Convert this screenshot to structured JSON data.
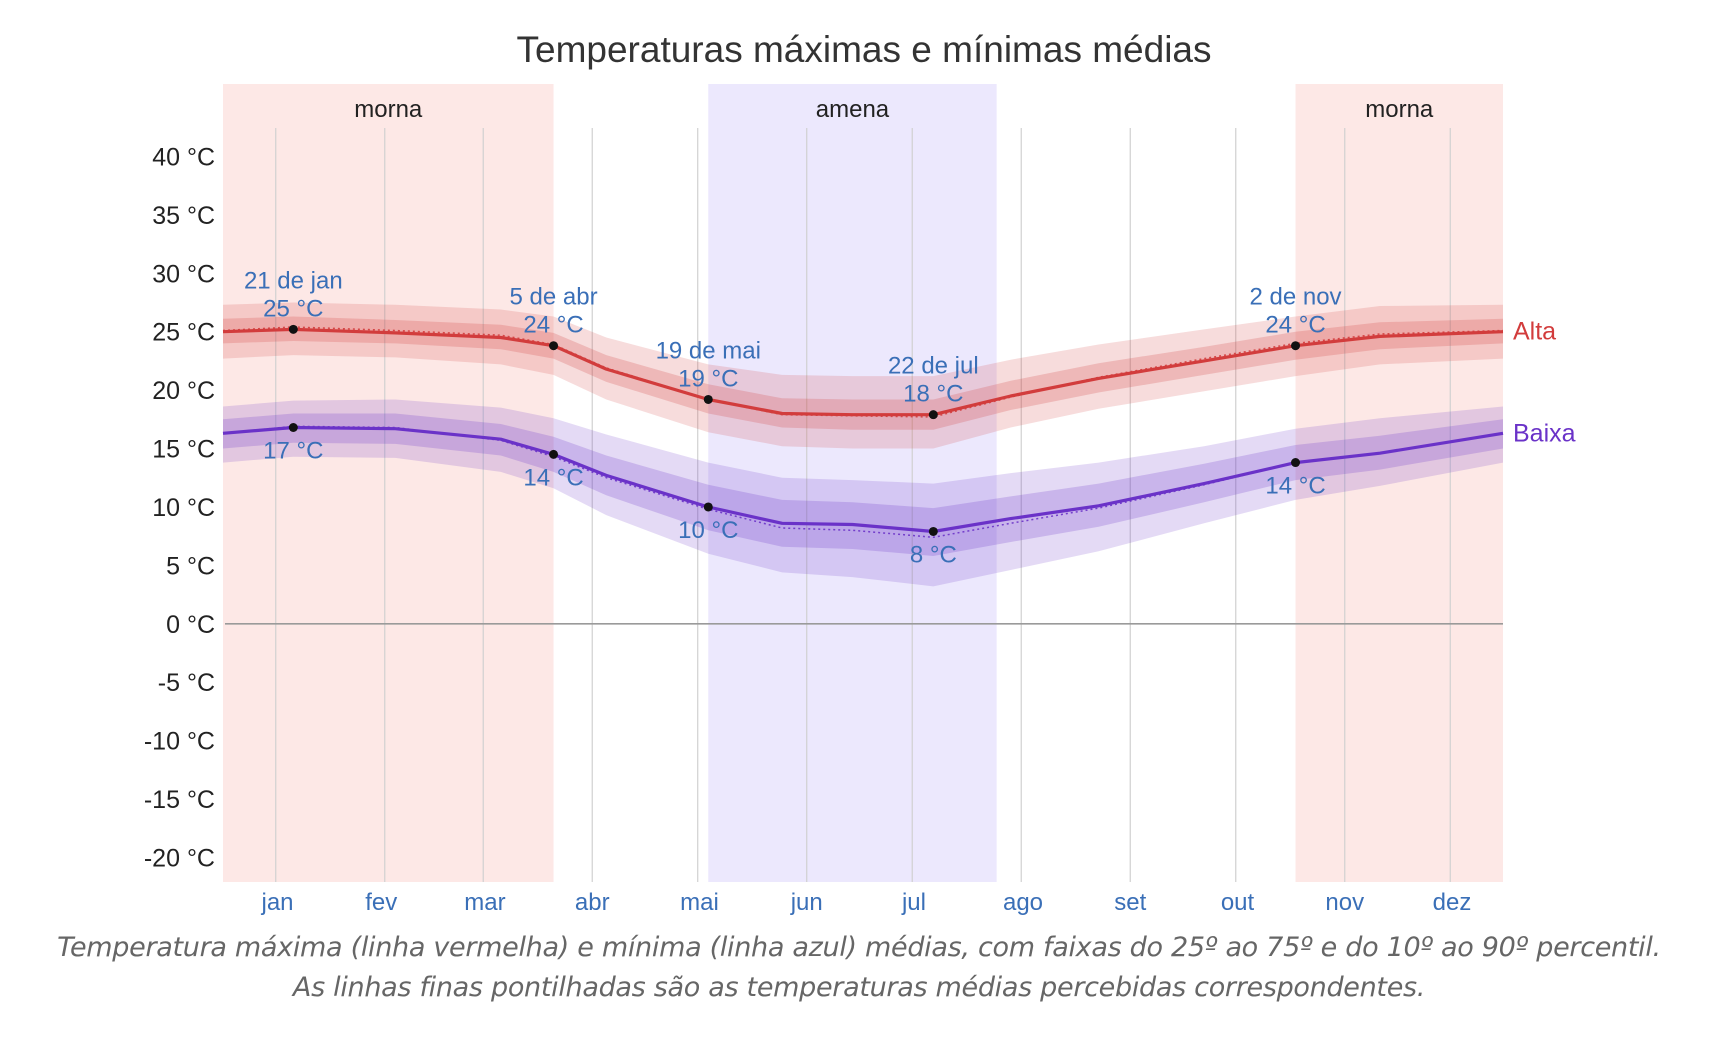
{
  "chart_data": {
    "type": "line",
    "title": "Temperaturas máximas e mínimas médias",
    "ylim": [
      -22,
      42
    ],
    "y_ticks": [
      40,
      35,
      30,
      25,
      20,
      15,
      10,
      5,
      0,
      -5,
      -10,
      -15,
      -20
    ],
    "y_tick_labels": [
      "40 °C",
      "35 °C",
      "30 °C",
      "25 °C",
      "20 °C",
      "15 °C",
      "10 °C",
      "5 °C",
      "0 °C",
      "-5 °C",
      "-10 °C",
      "-15 °C",
      "-20 °C"
    ],
    "months": [
      "jan",
      "fev",
      "mar",
      "abr",
      "mai",
      "jun",
      "jul",
      "ago",
      "set",
      "out",
      "nov",
      "dez"
    ],
    "x_unit": "day of year (1-365)",
    "grid": true,
    "seasons": [
      {
        "label": "morna",
        "start_day": 1,
        "end_day": 95,
        "color": "#fde8e6"
      },
      {
        "label": "amena",
        "start_day": 139,
        "end_day": 221,
        "color": "#ece8fd"
      },
      {
        "label": "morna",
        "start_day": 306,
        "end_day": 365,
        "color": "#fde8e6"
      }
    ],
    "series": [
      {
        "name": "Alta",
        "color": "#d23c3c",
        "x": [
          1,
          21,
          50,
          80,
          95,
          110,
          139,
          160,
          180,
          203,
          225,
          250,
          280,
          306,
          330,
          365
        ],
        "mean": [
          25.0,
          25.2,
          24.9,
          24.5,
          23.8,
          21.8,
          19.2,
          18.0,
          17.9,
          17.9,
          19.5,
          21.0,
          22.5,
          23.8,
          24.6,
          25.0
        ],
        "feels_like": [
          25.1,
          25.4,
          25.1,
          24.7,
          23.9,
          21.9,
          19.2,
          17.9,
          17.8,
          17.7,
          19.4,
          21.1,
          22.7,
          24.0,
          24.8,
          25.1
        ],
        "p25": [
          24.0,
          24.2,
          24.0,
          23.5,
          22.7,
          20.7,
          18.0,
          16.8,
          16.6,
          16.6,
          18.3,
          19.8,
          21.3,
          22.6,
          23.5,
          24.0
        ],
        "p75": [
          26.1,
          26.3,
          26.0,
          25.6,
          24.9,
          23.0,
          20.5,
          19.3,
          19.2,
          19.2,
          20.8,
          22.3,
          23.7,
          25.0,
          25.8,
          26.1
        ],
        "p10": [
          22.7,
          23.0,
          22.8,
          22.2,
          21.3,
          19.2,
          16.4,
          15.2,
          15.0,
          15.0,
          16.8,
          18.4,
          19.9,
          21.2,
          22.2,
          22.7
        ],
        "p90": [
          27.3,
          27.5,
          27.3,
          26.9,
          26.3,
          24.5,
          22.2,
          21.3,
          21.2,
          21.2,
          22.6,
          23.9,
          25.2,
          26.3,
          27.2,
          27.3
        ],
        "label": "Alta"
      },
      {
        "name": "Baixa",
        "color": "#6a32c8",
        "x": [
          1,
          21,
          50,
          80,
          95,
          110,
          139,
          160,
          180,
          203,
          225,
          250,
          280,
          306,
          330,
          365
        ],
        "mean": [
          16.3,
          16.8,
          16.7,
          15.8,
          14.5,
          12.7,
          10.0,
          8.6,
          8.5,
          7.9,
          9.0,
          10.1,
          12.0,
          13.8,
          14.6,
          16.3
        ],
        "feels_like": [
          16.3,
          16.9,
          16.8,
          15.7,
          14.3,
          12.5,
          9.8,
          8.2,
          8.0,
          7.4,
          8.6,
          9.9,
          11.9,
          13.8,
          14.6,
          16.3
        ],
        "p25": [
          15.0,
          15.5,
          15.4,
          14.4,
          13.0,
          11.0,
          8.0,
          6.6,
          6.4,
          5.8,
          7.0,
          8.3,
          10.4,
          12.3,
          13.2,
          15.0
        ],
        "p75": [
          17.5,
          18.0,
          18.0,
          17.1,
          16.0,
          14.4,
          11.9,
          10.6,
          10.4,
          9.9,
          10.9,
          12.0,
          13.7,
          15.3,
          16.1,
          17.5
        ],
        "p10": [
          13.8,
          14.3,
          14.2,
          13.0,
          11.6,
          9.3,
          6.0,
          4.4,
          4.0,
          3.2,
          4.6,
          6.2,
          8.6,
          10.6,
          11.8,
          13.8
        ],
        "p90": [
          18.6,
          19.1,
          19.2,
          18.5,
          17.6,
          16.2,
          13.8,
          12.5,
          12.3,
          12.0,
          12.9,
          13.8,
          15.2,
          16.7,
          17.6,
          18.6
        ],
        "label": "Baixa"
      }
    ],
    "annotations": [
      {
        "series": "Alta",
        "day": 21,
        "value": 25.2,
        "date_text": "21 de jan",
        "value_text": "25 °C",
        "position": "above"
      },
      {
        "series": "Alta",
        "day": 95,
        "value": 23.8,
        "date_text": "5 de abr",
        "value_text": "24 °C",
        "position": "above"
      },
      {
        "series": "Alta",
        "day": 139,
        "value": 19.2,
        "date_text": "19 de mai",
        "value_text": "19 °C",
        "position": "above"
      },
      {
        "series": "Alta",
        "day": 203,
        "value": 17.9,
        "date_text": "22 de jul",
        "value_text": "18 °C",
        "position": "above"
      },
      {
        "series": "Alta",
        "day": 306,
        "value": 23.8,
        "date_text": "2 de nov",
        "value_text": "24 °C",
        "position": "above"
      },
      {
        "series": "Baixa",
        "day": 21,
        "value": 16.8,
        "date_text": "",
        "value_text": "17 °C",
        "position": "below"
      },
      {
        "series": "Baixa",
        "day": 95,
        "value": 14.5,
        "date_text": "",
        "value_text": "14 °C",
        "position": "below"
      },
      {
        "series": "Baixa",
        "day": 139,
        "value": 10.0,
        "date_text": "",
        "value_text": "10 °C",
        "position": "below"
      },
      {
        "series": "Baixa",
        "day": 203,
        "value": 7.9,
        "date_text": "",
        "value_text": "8 °C",
        "position": "below"
      },
      {
        "series": "Baixa",
        "day": 306,
        "value": 13.8,
        "date_text": "",
        "value_text": "14 °C",
        "position": "below"
      }
    ],
    "colors": {
      "axis_text": "#222222",
      "month_text": "#3a6fb7",
      "annotation_text": "#3a6fb7",
      "grid": "#d0d0d0",
      "zero_line": "#9a9a9a",
      "title": "#333333"
    }
  },
  "caption": {
    "line1": "Temperatura máxima (linha vermelha) e mínima (linha azul) médias, com faixas do 25º ao 75º e do 10º ao 90º percentil.",
    "line2": "As linhas finas pontilhadas são as temperaturas médias percebidas correspondentes."
  }
}
